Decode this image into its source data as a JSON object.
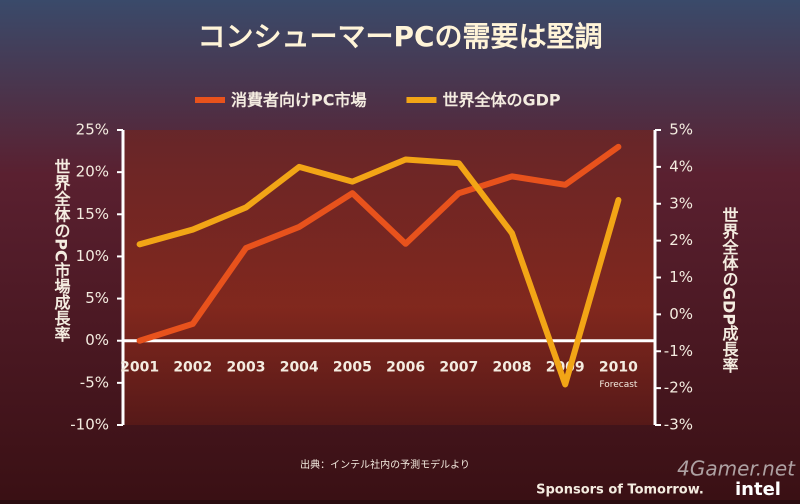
{
  "chart_data": {
    "type": "line",
    "title": "コンシューマーPCの需要は堅調",
    "categories": [
      "2001",
      "2002",
      "2003",
      "2004",
      "2005",
      "2006",
      "2007",
      "2008",
      "2009",
      "2010"
    ],
    "forecast_note": "Forecast",
    "series": [
      {
        "name": "消費者向けPC市場",
        "color": "#e8521c",
        "values": [
          0,
          2,
          11,
          13.5,
          17.5,
          11.5,
          17.5,
          19.5,
          18.5,
          23
        ]
      },
      {
        "name": "世界全体のGDP",
        "color": "#f2a516",
        "axis": "y2",
        "values": [
          1.9,
          2.3,
          2.9,
          4.0,
          3.6,
          4.2,
          4.1,
          2.2,
          -1.9,
          3.1
        ]
      }
    ],
    "ylabel": "世界全体のPC市場成長率",
    "y2label": "世界全体のGDP成長率",
    "ylim": [
      -10,
      25
    ],
    "yticks": [
      {
        "value": -10,
        "label": "-10%"
      },
      {
        "value": -5,
        "label": "-5%"
      },
      {
        "value": 0,
        "label": "0%"
      },
      {
        "value": 5,
        "label": "5%"
      },
      {
        "value": 10,
        "label": "10%"
      },
      {
        "value": 15,
        "label": "15%"
      },
      {
        "value": 20,
        "label": "20%"
      },
      {
        "value": 25,
        "label": "25%"
      }
    ],
    "y2lim": [
      -3,
      5
    ],
    "y2ticks": [
      {
        "value": -3,
        "label": "-3%"
      },
      {
        "value": -2,
        "label": "-2%"
      },
      {
        "value": -1,
        "label": "-1%"
      },
      {
        "value": 0,
        "label": "0%"
      },
      {
        "value": 1,
        "label": "1%"
      },
      {
        "value": 2,
        "label": "2%"
      },
      {
        "value": 3,
        "label": "3%"
      },
      {
        "value": 4,
        "label": "4%"
      },
      {
        "value": 5,
        "label": "5%"
      }
    ],
    "source": "出典：インテル社内の予測モデルより",
    "footer": "Sponsors of Tomorrow.",
    "logo": "intel",
    "watermark": "4Gamer.net"
  }
}
